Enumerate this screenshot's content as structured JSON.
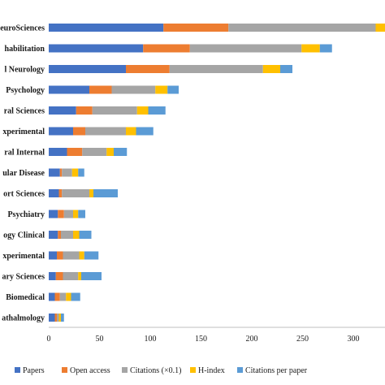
{
  "chart_data": {
    "type": "bar",
    "orientation": "horizontal",
    "stacked": true,
    "categories": [
      "euroSciences",
      "habilitation",
      "l Neurology",
      "Psychology",
      "ral Sciences",
      "xperimental",
      "ral Internal",
      "ular Disease",
      "ort Sciences",
      "Psychiatry",
      "ogy Clinical",
      "xperimental",
      "ary Sciences",
      "Biomedical",
      "athalmology"
    ],
    "series": [
      {
        "name": "Papers",
        "color": "#4472C4",
        "values": [
          113,
          93,
          76,
          40,
          27,
          24,
          18,
          11,
          10,
          9,
          9,
          8,
          7,
          6,
          6
        ]
      },
      {
        "name": "Open access",
        "color": "#ED7D31",
        "values": [
          64,
          46,
          43,
          22,
          16,
          12,
          15,
          2,
          3,
          6,
          3,
          6,
          7,
          5,
          2
        ]
      },
      {
        "name": "Citations (×0.1)",
        "color": "#A5A5A5",
        "values": [
          145,
          110,
          92,
          43,
          44,
          40,
          24,
          10,
          27,
          9,
          12,
          16,
          15,
          6,
          2
        ]
      },
      {
        "name": "H-index",
        "color": "#FFC000",
        "values": [
          30,
          18,
          17,
          12,
          11,
          10,
          7,
          6,
          4,
          5,
          6,
          5,
          3,
          5,
          2
        ]
      },
      {
        "name": "Citations per paper",
        "color": "#5B9BD5",
        "values": [
          0,
          12,
          12,
          11,
          17,
          17,
          13,
          6,
          24,
          7,
          12,
          14,
          20,
          9,
          3
        ]
      }
    ],
    "xlim": [
      0,
      330
    ],
    "xticks": [
      0,
      50,
      100,
      150,
      200,
      250,
      300
    ],
    "title": "",
    "xlabel": "",
    "ylabel": "",
    "grid": false,
    "legend_position": "bottom"
  }
}
